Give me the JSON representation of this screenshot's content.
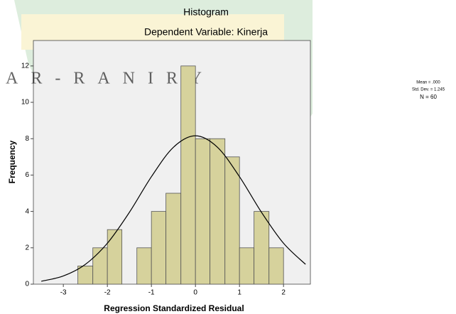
{
  "chart_data": {
    "type": "histogram",
    "title": "Histogram",
    "subtitle": "Dependent Variable: Kinerja",
    "watermark": "AR-RANIRY",
    "x_label": "Regression Standardized Residual",
    "y_label": "Frequency",
    "bins": [
      -2.67,
      -2.33,
      -2,
      -1.67,
      -1.33,
      -1,
      -0.67,
      -0.33,
      0,
      0.33,
      0.67,
      1,
      1.33,
      1.67,
      2
    ],
    "values": [
      1,
      2,
      3,
      0,
      2,
      4,
      5,
      12,
      8,
      8,
      7,
      2,
      4,
      2
    ],
    "color": "#d6d29c",
    "curve": {
      "name": "Normal",
      "color": "#000000",
      "x": [
        -3.5,
        -3,
        -2.5,
        -2,
        -1.5,
        -1,
        -0.5,
        0,
        0.5,
        1,
        1.5,
        2,
        2.5
      ],
      "values": [
        0.16,
        0.45,
        1.09,
        2.25,
        3.95,
        5.91,
        7.53,
        8.16,
        7.53,
        5.91,
        3.95,
        2.25,
        1.09
      ]
    },
    "stats": [
      "Mean = .000",
      "Std. Dev. = 1.245",
      "N = 60"
    ],
    "xlim": [
      -3.68,
      2.61
    ],
    "ylim": [
      0,
      13.4
    ],
    "xticks": [
      -3,
      -2,
      -1,
      0,
      1,
      2
    ],
    "yticks": [
      0,
      2,
      4,
      6,
      8,
      10,
      12
    ]
  }
}
